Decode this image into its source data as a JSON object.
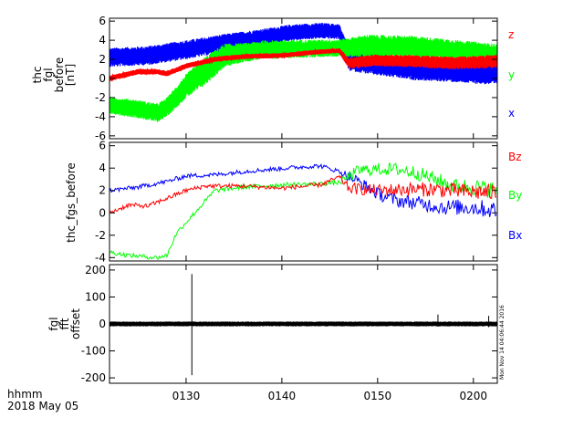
{
  "colors": {
    "x": "#0000ff",
    "y": "#00ff00",
    "z": "#ff0000",
    "black": "#000000"
  },
  "footer": {
    "time_label": "hhmm",
    "date_label": "2018 May 05"
  },
  "timestamp_label": "Mon Nov 14 04:06:44 2016",
  "chart_data": [
    {
      "type": "line",
      "ylabel_lines": [
        "thc",
        "fgl",
        "before",
        "[nT]"
      ],
      "ylim": [
        -6.3,
        6.3
      ],
      "yticks": [
        -6,
        -4,
        -2,
        0,
        2,
        4,
        6
      ],
      "xlim": [
        0,
        40.5
      ],
      "xticks": [
        {
          "value": 8,
          "label": "0130"
        },
        {
          "value": 18,
          "label": "0140"
        },
        {
          "value": 28,
          "label": "0150"
        },
        {
          "value": 38,
          "label": "0200"
        }
      ],
      "legend": [
        "z",
        "y",
        "x"
      ],
      "series": [
        {
          "name": "x",
          "center": [
            [
              0,
              2.2
            ],
            [
              4,
              2.4
            ],
            [
              8,
              3.0
            ],
            [
              12,
              3.7
            ],
            [
              16,
              4.3
            ],
            [
              19,
              4.8
            ],
            [
              22,
              5.0
            ],
            [
              24,
              4.9
            ],
            [
              25,
              2.0
            ],
            [
              28,
              1.5
            ],
            [
              32,
              1.0
            ],
            [
              36,
              0.8
            ],
            [
              40.5,
              0.5
            ]
          ],
          "halfwidth": [
            [
              0,
              1.0
            ],
            [
              8,
              1.0
            ],
            [
              16,
              0.9
            ],
            [
              24,
              0.8
            ],
            [
              25,
              1.2
            ],
            [
              40.5,
              1.2
            ]
          ]
        },
        {
          "name": "y",
          "center": [
            [
              0,
              -2.8
            ],
            [
              3,
              -3.2
            ],
            [
              5,
              -3.6
            ],
            [
              6,
              -3.0
            ],
            [
              8,
              -0.8
            ],
            [
              10,
              0.8
            ],
            [
              12,
              2.4
            ],
            [
              16,
              3.0
            ],
            [
              20,
              3.1
            ],
            [
              24,
              3.2
            ],
            [
              27,
              3.4
            ],
            [
              32,
              3.3
            ],
            [
              36,
              3.0
            ],
            [
              40.5,
              2.6
            ]
          ],
          "halfwidth": [
            [
              0,
              0.9
            ],
            [
              6,
              1.0
            ],
            [
              10,
              1.5
            ],
            [
              14,
              1.0
            ],
            [
              24,
              0.9
            ],
            [
              27,
              1.2
            ],
            [
              40.5,
              1.0
            ]
          ]
        },
        {
          "name": "z",
          "center": [
            [
              0,
              0.0
            ],
            [
              3,
              0.7
            ],
            [
              5,
              0.7
            ],
            [
              6,
              0.5
            ],
            [
              8,
              1.3
            ],
            [
              11,
              2.0
            ],
            [
              14,
              2.3
            ],
            [
              18,
              2.4
            ],
            [
              22,
              2.8
            ],
            [
              24,
              2.9
            ],
            [
              25,
              1.6
            ],
            [
              28,
              1.9
            ],
            [
              32,
              1.8
            ],
            [
              36,
              1.6
            ],
            [
              40.5,
              1.8
            ]
          ],
          "halfwidth": [
            [
              0,
              0.3
            ],
            [
              24,
              0.25
            ],
            [
              25,
              0.6
            ],
            [
              40.5,
              0.7
            ]
          ]
        }
      ]
    },
    {
      "type": "line",
      "ylabel_lines": [
        "thc_fgs_before"
      ],
      "ylim": [
        -4.3,
        6.3
      ],
      "yticks": [
        -4,
        -2,
        0,
        2,
        4,
        6
      ],
      "xlim": [
        0,
        40.5
      ],
      "xticks": [
        {
          "value": 8,
          "label": "0130"
        },
        {
          "value": 18,
          "label": "0140"
        },
        {
          "value": 28,
          "label": "0150"
        },
        {
          "value": 38,
          "label": "0200"
        }
      ],
      "legend": [
        "Bz",
        "By",
        "Bx"
      ],
      "series": [
        {
          "name": "Bx",
          "points": [
            [
              0,
              2.0
            ],
            [
              3,
              2.3
            ],
            [
              6,
              2.8
            ],
            [
              8,
              3.3
            ],
            [
              11,
              3.4
            ],
            [
              14,
              3.7
            ],
            [
              17,
              3.9
            ],
            [
              20,
              4.1
            ],
            [
              22,
              4.2
            ],
            [
              24,
              3.7
            ],
            [
              26,
              2.8
            ],
            [
              28,
              1.7
            ],
            [
              30,
              1.1
            ],
            [
              32,
              0.9
            ],
            [
              35,
              0.5
            ],
            [
              38,
              0.5
            ],
            [
              40.5,
              0.2
            ]
          ]
        },
        {
          "name": "By",
          "points": [
            [
              0,
              -3.5
            ],
            [
              2,
              -3.8
            ],
            [
              5,
              -4.0
            ],
            [
              6,
              -3.8
            ],
            [
              7,
              -1.8
            ],
            [
              9,
              0.1
            ],
            [
              11,
              2.0
            ],
            [
              14,
              2.3
            ],
            [
              18,
              2.5
            ],
            [
              22,
              2.6
            ],
            [
              24,
              2.7
            ],
            [
              26,
              3.8
            ],
            [
              28,
              3.9
            ],
            [
              30,
              3.9
            ],
            [
              32,
              3.6
            ],
            [
              34,
              3.0
            ],
            [
              36,
              2.4
            ],
            [
              38,
              2.3
            ],
            [
              40.5,
              2.0
            ]
          ]
        },
        {
          "name": "Bz",
          "points": [
            [
              0,
              0.0
            ],
            [
              2,
              0.7
            ],
            [
              4,
              0.6
            ],
            [
              6,
              1.3
            ],
            [
              8,
              2.0
            ],
            [
              10,
              2.4
            ],
            [
              14,
              2.4
            ],
            [
              18,
              2.2
            ],
            [
              22,
              2.5
            ],
            [
              24,
              3.2
            ],
            [
              25,
              2.2
            ],
            [
              28,
              2.0
            ],
            [
              31,
              2.1
            ],
            [
              34,
              2.1
            ],
            [
              37,
              1.9
            ],
            [
              40.5,
              1.8
            ]
          ]
        }
      ],
      "noise": [
        [
          0,
          0.2
        ],
        [
          24,
          0.2
        ],
        [
          25,
          0.5
        ],
        [
          40.5,
          0.8
        ]
      ]
    },
    {
      "type": "line",
      "ylabel_lines": [
        "fgl",
        "fft",
        "offset"
      ],
      "ylim": [
        -220,
        220
      ],
      "yticks": [
        -200,
        -100,
        0,
        100,
        200
      ],
      "xlim": [
        0,
        40.5
      ],
      "xticks": [
        {
          "value": 8,
          "label": "0130"
        },
        {
          "value": 18,
          "label": "0140"
        },
        {
          "value": 28,
          "label": "0150"
        },
        {
          "value": 38,
          "label": "0200"
        }
      ],
      "series": [
        {
          "name": "",
          "band": [
            [
              0,
              -9,
              9
            ],
            [
              40.5,
              -9,
              9
            ]
          ],
          "spikes": [
            [
              8.6,
              185,
              -190
            ],
            [
              34.3,
              -10,
              35
            ],
            [
              39.6,
              -12,
              30
            ]
          ]
        }
      ]
    }
  ]
}
